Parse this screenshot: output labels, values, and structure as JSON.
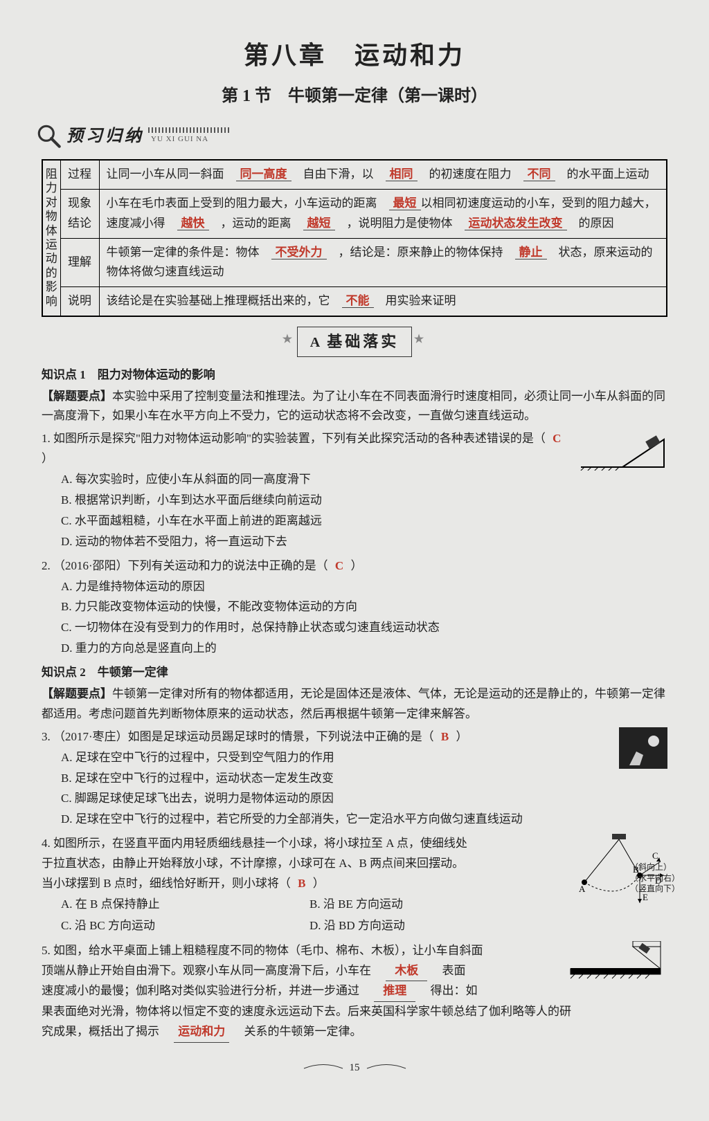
{
  "meta": {
    "page_number": "15"
  },
  "colors": {
    "text": "#222222",
    "answer_red": "#c0392b",
    "background": "#e8e8e6",
    "border": "#000000",
    "star_gray": "#888888"
  },
  "header": {
    "chapter": "第八章　运动和力",
    "section": "第 1 节　牛顿第一定律（第一课时）",
    "preview_banner": "预习归纳",
    "preview_pinyin": "YU XI GUI NA"
  },
  "table": {
    "vertical_label": "阻力对物体运动的影响",
    "rows": [
      {
        "label": "过程",
        "segments": [
          {
            "t": "让同一小车从同一斜面　"
          },
          {
            "t": "同一高度",
            "red": true,
            "u": true
          },
          {
            "t": "　自由下滑，以　"
          },
          {
            "t": "相同",
            "red": true,
            "u": true
          },
          {
            "t": "　的初速度在阻力　"
          },
          {
            "t": "不同",
            "red": true,
            "u": true
          },
          {
            "t": "　的水平面上运动"
          }
        ]
      },
      {
        "label": "现象结论",
        "segments": [
          {
            "t": "小车在毛巾表面上受到的阻力最大，小车运动的距离　"
          },
          {
            "t": "最短",
            "red": true,
            "u": true
          },
          {
            "t": "以相同初速度运动的小车，受到的阻力越大，速度减小得　"
          },
          {
            "t": "越快",
            "red": true,
            "u": true
          },
          {
            "t": "　，运动的距离　"
          },
          {
            "t": "越短",
            "red": true,
            "u": true
          },
          {
            "t": "　，说明阻力是使物体　"
          },
          {
            "t": "运动状态发生改变",
            "red": true,
            "u": true
          },
          {
            "t": "　的原因"
          }
        ]
      },
      {
        "label": "理解",
        "segments": [
          {
            "t": "牛顿第一定律的条件是：物体　"
          },
          {
            "t": "不受外力",
            "red": true,
            "u": true
          },
          {
            "t": "　，结论是：原来静止的物体保持　"
          },
          {
            "t": "静止",
            "red": true,
            "u": true
          },
          {
            "t": "　状态，原来运动的物体将做匀速直线运动"
          }
        ]
      },
      {
        "label": "说明",
        "segments": [
          {
            "t": "该结论是在实验基础上推理概括出来的，它　"
          },
          {
            "t": "不能",
            "red": true,
            "u": true
          },
          {
            "t": "　用实验来证明"
          }
        ]
      }
    ]
  },
  "badge": {
    "A": "A",
    "label": "基础落实"
  },
  "kp1": {
    "title": "知识点 1　阻力对物体运动的影响",
    "tip_label": "【解题要点】",
    "tip": "本实验中采用了控制变量法和推理法。为了让小车在不同表面滑行时速度相同，必须让同一小车从斜面的同一高度滑下，如果小车在水平方向上不受力，它的运动状态将不会改变，一直做匀速直线运动。",
    "q1": {
      "stem": "1. 如图所示是探究\"阻力对物体运动影响\"的实验装置，下列有关此探究活动的各种表述错误的是（",
      "ans": "C",
      "close": "）",
      "opts": {
        "A": "A. 每次实验时，应使小车从斜面的同一高度滑下",
        "B": "B. 根据常识判断，小车到达水平面后继续向前运动",
        "C": "C. 水平面越粗糙，小车在水平面上前进的距离越远",
        "D": "D. 运动的物体若不受阻力，将一直运动下去"
      }
    },
    "q2": {
      "stem": "2. （2016·邵阳）下列有关运动和力的说法中正确的是（",
      "ans": "C",
      "close": "）",
      "opts": {
        "A": "A. 力是维持物体运动的原因",
        "B": "B. 力只能改变物体运动的快慢，不能改变物体运动的方向",
        "C": "C. 一切物体在没有受到力的作用时，总保持静止状态或匀速直线运动状态",
        "D": "D. 重力的方向总是竖直向上的"
      }
    }
  },
  "kp2": {
    "title": "知识点 2　牛顿第一定律",
    "tip_label": "【解题要点】",
    "tip": "牛顿第一定律对所有的物体都适用，无论是固体还是液体、气体，无论是运动的还是静止的，牛顿第一定律都适用。考虑问题首先判断物体原来的运动状态，然后再根据牛顿第一定律来解答。",
    "q3": {
      "stem": "3. （2017·枣庄）如图是足球运动员踢足球时的情景，下列说法中正确的是（",
      "ans": "B",
      "close": "）",
      "opts": {
        "A": "A. 足球在空中飞行的过程中，只受到空气阻力的作用",
        "B": "B. 足球在空中飞行的过程中，运动状态一定发生改变",
        "C": "C. 脚踢足球使足球飞出去，说明力是物体运动的原因",
        "D": "D. 足球在空中飞行的过程中，若它所受的力全部消失，它一定沿水平方向做匀速直线运动"
      }
    },
    "q4": {
      "stem1": "4. 如图所示，在竖直平面内用轻质细线悬挂一个小球，将小球拉至 A 点，使细线处",
      "stem2": "于拉直状态，由静止开始释放小球，不计摩擦，小球可在 A、B 两点间来回摆动。",
      "stem3": "当小球摆到 B 点时，细线恰好断开，则小球将（",
      "ans": "B",
      "close": "）",
      "opts": {
        "A": "A. 在 B 点保持静止",
        "B": "B. 沿 BE 方向运动",
        "C": "C. 沿 BC 方向运动",
        "D": "D. 沿 BD 方向运动"
      },
      "fig_labels": {
        "A": "A",
        "B": "B",
        "C": "C",
        "D": "D",
        "E": "E",
        "dir1": "（斜向上）",
        "dir2": "（水平向右）",
        "dir3": "（竖直向下）"
      }
    },
    "q5": {
      "pre": "5. 如图，给水平桌面上铺上粗糙程度不同的物体（毛巾、棉布、木板），让小车自斜面",
      "line2a": "顶端从静止开始自由滑下。观察小车从同一高度滑下后，小车在　",
      "blank1": "木板",
      "line2b": "　表面",
      "line3a": "速度减小的最慢；伽利略对类似实验进行分析，并进一步通过　",
      "blank2": "推理",
      "line3b": "　得出：如",
      "line4a": "果表面绝对光滑，物体将以恒定不变的速度永远运动下去。后来英国科学家牛顿总结了伽利略等人的研",
      "line5a": "究成果，概括出了揭示　",
      "blank3": "运动和力",
      "line5b": "　关系的牛顿第一定律。"
    }
  }
}
